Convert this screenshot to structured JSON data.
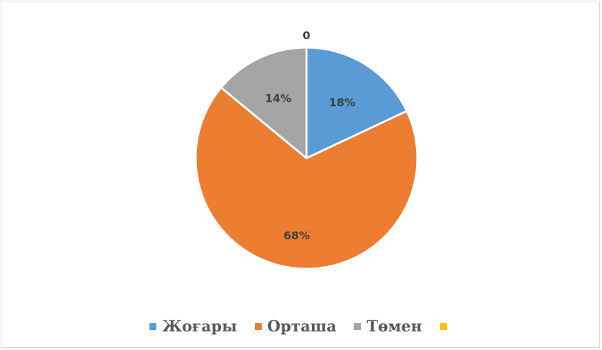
{
  "chart_data": {
    "type": "pie",
    "slices": [
      {
        "name": "Жоғары",
        "value": 18,
        "label": "18%",
        "color": "#5b9bd5"
      },
      {
        "name": "Орташа",
        "value": 68,
        "label": "68%",
        "color": "#ed7d31"
      },
      {
        "name": "Төмен",
        "value": 14,
        "label": "14%",
        "color": "#a5a5a5"
      },
      {
        "name": "",
        "value": 0,
        "label": "0",
        "color": "#ffc000"
      }
    ],
    "start_angle": "12 o'clock",
    "direction": "clockwise",
    "legend_position": "bottom"
  }
}
